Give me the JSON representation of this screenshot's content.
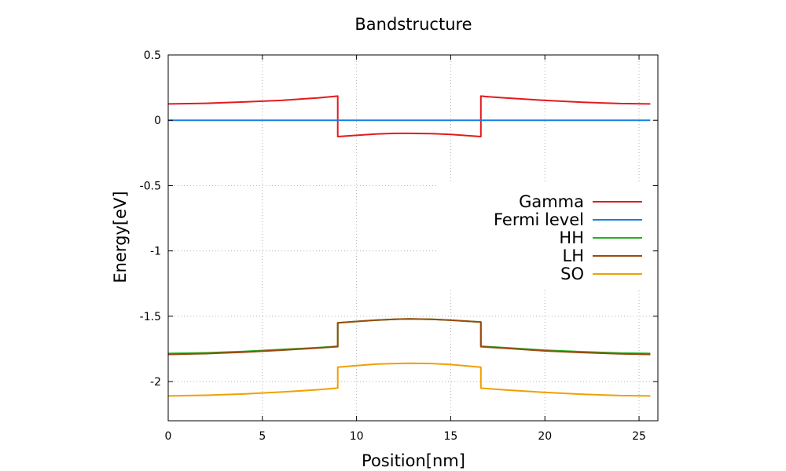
{
  "chart_data": {
    "type": "line",
    "title": "Bandstructure",
    "xlabel": "Position[nm]",
    "ylabel": "Energy[eV]",
    "xlim": [
      0,
      26
    ],
    "ylim": [
      -2.3,
      0.5
    ],
    "xticks": [
      0,
      5,
      10,
      15,
      20,
      25
    ],
    "xtick_labels": [
      "0",
      "5",
      "10",
      "15",
      "20",
      "25"
    ],
    "yticks": [
      0.5,
      0,
      -0.5,
      -1,
      -1.5,
      -2
    ],
    "ytick_labels": [
      "0.5",
      "0",
      "-0.5",
      "-1",
      "-1.5",
      "-2"
    ],
    "grid": true,
    "legend_position": "right",
    "series": [
      {
        "name": "Gamma",
        "color": "#e41a1c",
        "x": [
          0,
          2,
          4,
          6,
          8,
          9,
          9,
          10,
          11,
          12,
          12.8,
          14,
          15,
          16.6,
          16.6,
          17,
          18,
          20,
          22,
          24,
          25.6
        ],
        "y": [
          0.125,
          0.13,
          0.14,
          0.152,
          0.172,
          0.185,
          -0.125,
          -0.115,
          -0.105,
          -0.1,
          -0.1,
          -0.102,
          -0.108,
          -0.125,
          0.185,
          0.18,
          0.17,
          0.152,
          0.138,
          0.128,
          0.125
        ]
      },
      {
        "name": "Fermi level",
        "color": "#1a7fe0",
        "x": [
          0,
          25.6
        ],
        "y": [
          0,
          0
        ]
      },
      {
        "name": "HH",
        "color": "#21b021",
        "x": [
          0,
          2,
          4,
          6,
          8,
          9,
          9,
          10,
          11,
          12,
          12.8,
          14,
          15,
          16.6,
          16.6,
          18,
          20,
          22,
          24,
          25.6
        ],
        "y": [
          -1.785,
          -1.78,
          -1.77,
          -1.755,
          -1.74,
          -1.73,
          -1.55,
          -1.54,
          -1.53,
          -1.523,
          -1.52,
          -1.523,
          -1.53,
          -1.545,
          -1.73,
          -1.742,
          -1.76,
          -1.772,
          -1.782,
          -1.785
        ]
      },
      {
        "name": "LH",
        "color": "#9a4a0e",
        "x": [
          0,
          2,
          4,
          6,
          8,
          9,
          9,
          10,
          11,
          12,
          12.8,
          14,
          15,
          16.6,
          16.6,
          18,
          20,
          22,
          24,
          25.6
        ],
        "y": [
          -1.792,
          -1.786,
          -1.775,
          -1.76,
          -1.743,
          -1.733,
          -1.55,
          -1.54,
          -1.53,
          -1.523,
          -1.52,
          -1.523,
          -1.53,
          -1.545,
          -1.733,
          -1.746,
          -1.765,
          -1.778,
          -1.788,
          -1.792
        ]
      },
      {
        "name": "SO",
        "color": "#f0a000",
        "x": [
          0,
          2,
          4,
          6,
          8,
          9,
          9,
          10,
          11,
          12,
          12.8,
          14,
          15,
          16.6,
          16.6,
          18,
          20,
          22,
          24,
          25.6
        ],
        "y": [
          -2.11,
          -2.105,
          -2.095,
          -2.08,
          -2.062,
          -2.05,
          -1.89,
          -1.878,
          -1.867,
          -1.862,
          -1.86,
          -1.862,
          -1.87,
          -1.89,
          -2.05,
          -2.065,
          -2.083,
          -2.097,
          -2.107,
          -2.11
        ]
      }
    ]
  }
}
